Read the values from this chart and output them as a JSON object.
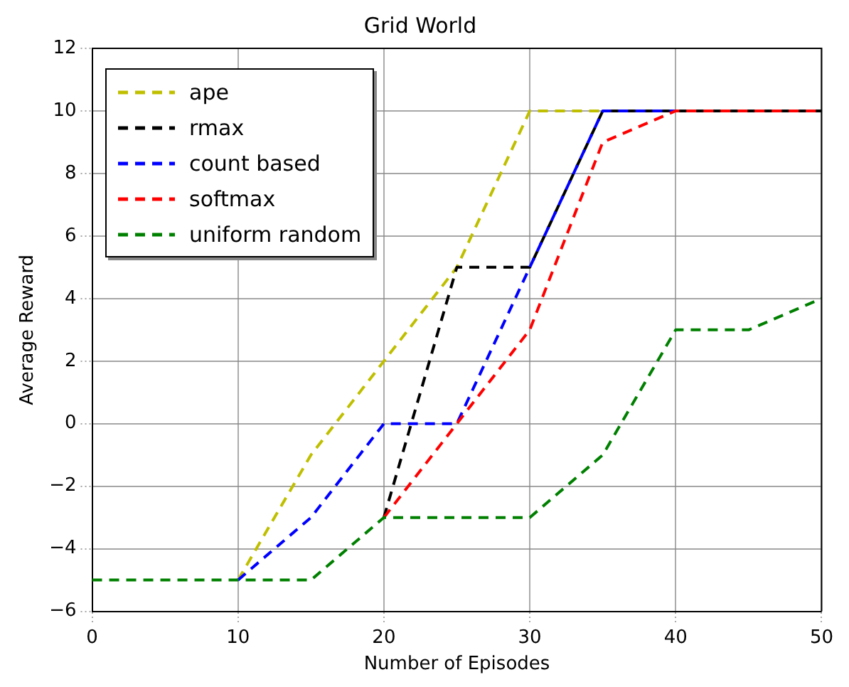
{
  "chart_data": {
    "type": "line",
    "title": "Grid World",
    "xlabel": "Number of Episodes",
    "ylabel": "Average Reward",
    "x": [
      0,
      5,
      10,
      15,
      20,
      25,
      30,
      35,
      40,
      45,
      50
    ],
    "series": [
      {
        "name": "ape",
        "color": "#bfbf00",
        "values": [
          null,
          null,
          -5,
          -1,
          2,
          5,
          10,
          10,
          null,
          null,
          null
        ]
      },
      {
        "name": "rmax",
        "color": "#000000",
        "values": [
          null,
          null,
          null,
          null,
          -3,
          5,
          5,
          10,
          10,
          10,
          10
        ]
      },
      {
        "name": "count based",
        "color": "#0000ff",
        "values": [
          null,
          null,
          -5,
          -3,
          0,
          0,
          5,
          10,
          10,
          null,
          null
        ]
      },
      {
        "name": "softmax",
        "color": "#ff0000",
        "values": [
          null,
          null,
          null,
          null,
          -3,
          0,
          3,
          9,
          10,
          10,
          10
        ]
      },
      {
        "name": "uniform random",
        "color": "#008000",
        "values": [
          -5,
          -5,
          -5,
          -5,
          -3,
          -3,
          -3,
          -1,
          3,
          3,
          4
        ]
      }
    ],
    "xlim": [
      0,
      50
    ],
    "xticks": [
      0,
      10,
      20,
      30,
      40,
      50
    ],
    "ylim": [
      -6,
      12
    ],
    "yticks": [
      -6,
      -4,
      -2,
      0,
      2,
      4,
      6,
      8,
      10,
      12
    ],
    "grid": true,
    "legend": "top left",
    "marker": "none",
    "line_style": "dashed"
  }
}
